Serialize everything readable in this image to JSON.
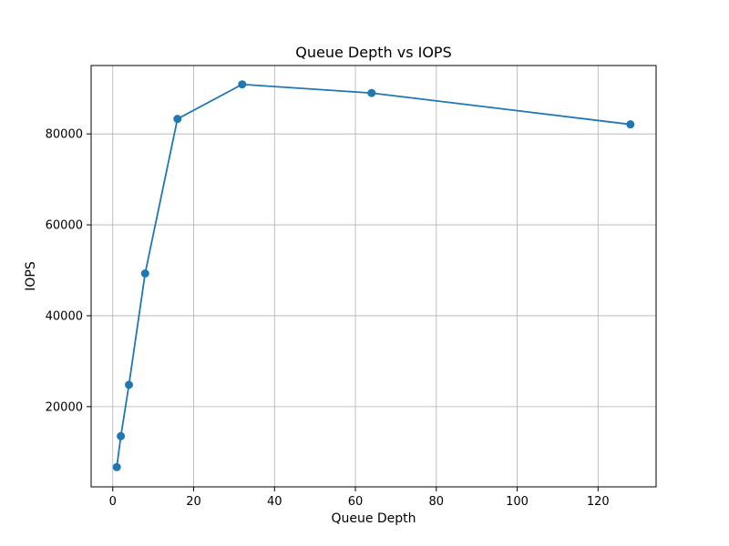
{
  "chart_data": {
    "type": "line",
    "title": "Queue Depth vs IOPS",
    "xlabel": "Queue Depth",
    "ylabel": "IOPS",
    "xlim": [
      -5.35,
      134.35
    ],
    "ylim": [
      2350,
      95050
    ],
    "xticks": [
      0,
      20,
      40,
      60,
      80,
      100,
      120
    ],
    "yticks": [
      20000,
      40000,
      60000,
      80000
    ],
    "xtick_labels": [
      "0",
      "20",
      "40",
      "60",
      "80",
      "100",
      "120"
    ],
    "ytick_labels": [
      "20000",
      "40000",
      "60000",
      "80000"
    ],
    "grid": true,
    "series": [
      {
        "color": "#1f77b4",
        "marker": "circle",
        "x": [
          1,
          2,
          4,
          8,
          16,
          32,
          64,
          128
        ],
        "y": [
          6700,
          13500,
          24800,
          49300,
          83300,
          90900,
          89000,
          82100
        ]
      }
    ]
  }
}
